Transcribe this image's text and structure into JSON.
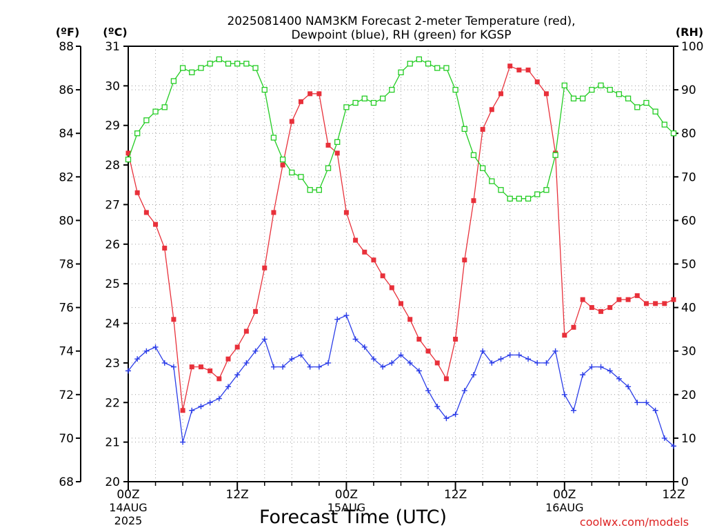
{
  "title_line1": "2025081400 NAM3KM Forecast 2-meter Temperature (red),",
  "title_line2": "Dewpoint (blue), RH (green) for KGSP",
  "unit_f": "(ºF)",
  "unit_c": "(ºC)",
  "unit_rh": "(RH)",
  "xlabel": "Forecast Time (UTC)",
  "credit": "coolwx.com/models",
  "colors": {
    "temp": "#e8303a",
    "dewpoint": "#2a3ce8",
    "rh": "#22cc22",
    "grid": "#999999",
    "credit": "#dd2222"
  },
  "chart_data": {
    "type": "line",
    "title": "2025081400 NAM3KM Forecast 2-meter Temperature (red), Dewpoint (blue), RH (green) for KGSP",
    "xlabel": "Forecast Time (UTC)",
    "x_unit": "forecast hour from 2025-08-14 00Z",
    "x": [
      0,
      1,
      2,
      3,
      4,
      5,
      6,
      7,
      8,
      9,
      10,
      11,
      12,
      13,
      14,
      15,
      16,
      17,
      18,
      19,
      20,
      21,
      22,
      23,
      24,
      25,
      26,
      27,
      28,
      29,
      30,
      31,
      32,
      33,
      34,
      35,
      36,
      37,
      38,
      39,
      40,
      41,
      42,
      43,
      44,
      45,
      46,
      47,
      48,
      49,
      50,
      51,
      52,
      53,
      54,
      55,
      56,
      57,
      58,
      59,
      60
    ],
    "xlim": [
      0,
      60
    ],
    "x_ticks": [
      {
        "x": 0,
        "label": "00Z",
        "sub": [
          "14AUG",
          "2025"
        ]
      },
      {
        "x": 12,
        "label": "12Z",
        "sub": []
      },
      {
        "x": 24,
        "label": "00Z",
        "sub": [
          "15AUG"
        ]
      },
      {
        "x": 36,
        "label": "12Z",
        "sub": []
      },
      {
        "x": 48,
        "label": "00Z",
        "sub": [
          "16AUG"
        ]
      },
      {
        "x": 60,
        "label": "12Z",
        "sub": []
      }
    ],
    "axes": {
      "left_f": {
        "label": "(ºF)",
        "ylim": [
          68,
          88
        ],
        "ticks": [
          68,
          70,
          72,
          74,
          76,
          78,
          80,
          82,
          84,
          86,
          88
        ]
      },
      "left_c": {
        "label": "(ºC)",
        "ylim": [
          20,
          31
        ],
        "ticks": [
          20,
          21,
          22,
          23,
          24,
          25,
          26,
          27,
          28,
          29,
          30,
          31
        ]
      },
      "right_rh": {
        "label": "(RH)",
        "ylim": [
          0,
          100
        ],
        "ticks": [
          0,
          10,
          20,
          30,
          40,
          50,
          60,
          70,
          80,
          90,
          100
        ]
      }
    },
    "grid": true,
    "series": [
      {
        "name": "2-meter Temperature",
        "axis": "left_c",
        "color": "#e8303a",
        "marker": "filled-square",
        "values": [
          28.3,
          27.3,
          26.8,
          26.5,
          25.9,
          24.1,
          21.8,
          22.9,
          22.9,
          22.8,
          22.6,
          23.1,
          23.4,
          23.8,
          24.3,
          25.4,
          26.8,
          28.0,
          29.1,
          29.6,
          29.8,
          29.8,
          28.5,
          28.3,
          26.8,
          26.1,
          25.8,
          25.6,
          25.2,
          24.9,
          24.5,
          24.1,
          23.6,
          23.3,
          23.0,
          22.6,
          23.6,
          25.6,
          27.1,
          28.9,
          29.4,
          29.8,
          30.5,
          30.4,
          30.4,
          30.1,
          29.8,
          28.3,
          23.7,
          23.9,
          24.6,
          24.4,
          24.3,
          24.4,
          24.6,
          24.6,
          24.7,
          24.5,
          24.5,
          24.5,
          24.6
        ]
      },
      {
        "name": "Dewpoint",
        "axis": "left_c",
        "color": "#2a3ce8",
        "marker": "plus",
        "values": [
          22.8,
          23.1,
          23.3,
          23.4,
          23.0,
          22.9,
          21.0,
          21.8,
          21.9,
          22.0,
          22.1,
          22.4,
          22.7,
          23.0,
          23.3,
          23.6,
          22.9,
          22.9,
          23.1,
          23.2,
          22.9,
          22.9,
          23.0,
          24.1,
          24.2,
          23.6,
          23.4,
          23.1,
          22.9,
          23.0,
          23.2,
          23.0,
          22.8,
          22.3,
          21.9,
          21.6,
          21.7,
          22.3,
          22.7,
          23.3,
          23.0,
          23.1,
          23.2,
          23.2,
          23.1,
          23.0,
          23.0,
          23.3,
          22.2,
          21.8,
          22.7,
          22.9,
          22.9,
          22.8,
          22.6,
          22.4,
          22.0,
          22.0,
          21.8,
          21.1,
          20.9
        ]
      },
      {
        "name": "RH",
        "axis": "right_rh",
        "color": "#22cc22",
        "marker": "open-square",
        "values": [
          74,
          80,
          83,
          85,
          86,
          92,
          95,
          94,
          95,
          96,
          97,
          96,
          96,
          96,
          95,
          90,
          79,
          74,
          71,
          70,
          67,
          67,
          72,
          78,
          86,
          87,
          88,
          87,
          88,
          90,
          94,
          96,
          97,
          96,
          95,
          95,
          90,
          81,
          75,
          72,
          69,
          67,
          65,
          65,
          65,
          66,
          67,
          75,
          91,
          88,
          88,
          90,
          91,
          90,
          89,
          88,
          86,
          87,
          85,
          82,
          80
        ]
      }
    ]
  }
}
